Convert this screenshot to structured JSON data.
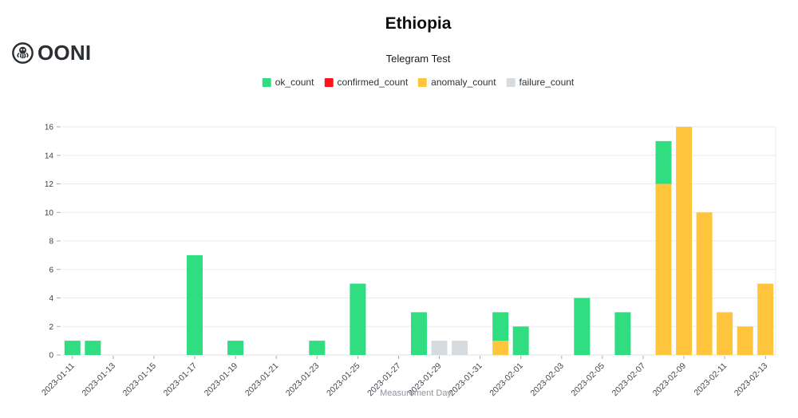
{
  "header": {
    "logo_text": "OONI"
  },
  "chart_data": {
    "type": "bar",
    "stacked": true,
    "title": "Ethiopia",
    "subtitle": "Telegram Test",
    "xlabel": "Measurement Day",
    "ylabel": "",
    "ylim": [
      0,
      16
    ],
    "ytick_step": 2,
    "grid": true,
    "legend_position": "top",
    "series": [
      {
        "name": "ok_count",
        "color": "#30dd81"
      },
      {
        "name": "confirmed_count",
        "color": "#fa141e"
      },
      {
        "name": "anomaly_count",
        "color": "#ffc53d"
      },
      {
        "name": "failure_count",
        "color": "#d6dbe0"
      }
    ],
    "num_slots": 35,
    "x_ticks": [
      {
        "slot": 0,
        "label": "2023-01-11"
      },
      {
        "slot": 2,
        "label": "2023-01-13"
      },
      {
        "slot": 4,
        "label": "2023-01-15"
      },
      {
        "slot": 6,
        "label": "2023-01-17"
      },
      {
        "slot": 8,
        "label": "2023-01-19"
      },
      {
        "slot": 10,
        "label": "2023-01-21"
      },
      {
        "slot": 12,
        "label": "2023-01-23"
      },
      {
        "slot": 14,
        "label": "2023-01-25"
      },
      {
        "slot": 16,
        "label": "2023-01-27"
      },
      {
        "slot": 18,
        "label": "2023-01-29"
      },
      {
        "slot": 20,
        "label": "2023-01-31"
      },
      {
        "slot": 22,
        "label": "2023-02-01"
      },
      {
        "slot": 24,
        "label": "2023-02-03"
      },
      {
        "slot": 26,
        "label": "2023-02-05"
      },
      {
        "slot": 28,
        "label": "2023-02-07"
      },
      {
        "slot": 30,
        "label": "2023-02-09"
      },
      {
        "slot": 32,
        "label": "2023-02-11"
      },
      {
        "slot": 34,
        "label": "2023-02-13"
      }
    ],
    "bars": [
      {
        "slot": 0,
        "segments": [
          {
            "series": "ok_count",
            "value": 1
          }
        ]
      },
      {
        "slot": 1,
        "segments": [
          {
            "series": "ok_count",
            "value": 1
          }
        ]
      },
      {
        "slot": 6,
        "segments": [
          {
            "series": "ok_count",
            "value": 7
          }
        ]
      },
      {
        "slot": 8,
        "segments": [
          {
            "series": "ok_count",
            "value": 1
          }
        ]
      },
      {
        "slot": 12,
        "segments": [
          {
            "series": "ok_count",
            "value": 1
          }
        ]
      },
      {
        "slot": 14,
        "segments": [
          {
            "series": "ok_count",
            "value": 5
          }
        ]
      },
      {
        "slot": 17,
        "segments": [
          {
            "series": "ok_count",
            "value": 3
          }
        ]
      },
      {
        "slot": 18,
        "segments": [
          {
            "series": "failure_count",
            "value": 1
          }
        ]
      },
      {
        "slot": 19,
        "segments": [
          {
            "series": "failure_count",
            "value": 1
          }
        ]
      },
      {
        "slot": 21,
        "segments": [
          {
            "series": "anomaly_count",
            "value": 1
          },
          {
            "series": "ok_count",
            "value": 2
          }
        ]
      },
      {
        "slot": 22,
        "segments": [
          {
            "series": "ok_count",
            "value": 2
          }
        ]
      },
      {
        "slot": 25,
        "segments": [
          {
            "series": "ok_count",
            "value": 4
          }
        ]
      },
      {
        "slot": 27,
        "segments": [
          {
            "series": "ok_count",
            "value": 3
          }
        ]
      },
      {
        "slot": 29,
        "segments": [
          {
            "series": "anomaly_count",
            "value": 12
          },
          {
            "series": "ok_count",
            "value": 3
          }
        ]
      },
      {
        "slot": 30,
        "segments": [
          {
            "series": "anomaly_count",
            "value": 16
          }
        ]
      },
      {
        "slot": 31,
        "segments": [
          {
            "series": "anomaly_count",
            "value": 10
          }
        ]
      },
      {
        "slot": 32,
        "segments": [
          {
            "series": "anomaly_count",
            "value": 3
          }
        ]
      },
      {
        "slot": 33,
        "segments": [
          {
            "series": "anomaly_count",
            "value": 2
          }
        ]
      },
      {
        "slot": 34,
        "segments": [
          {
            "series": "anomaly_count",
            "value": 5
          }
        ]
      }
    ]
  }
}
